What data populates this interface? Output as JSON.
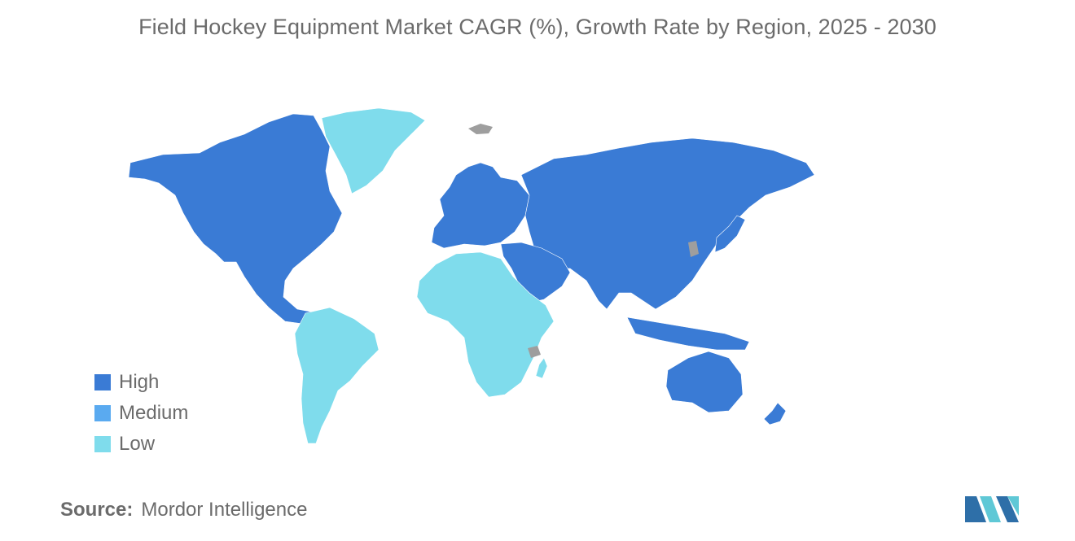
{
  "title": "Field Hockey Equipment Market CAGR (%), Growth Rate by Region, 2025 - 2030",
  "legend": [
    {
      "label": "High",
      "color": "#3a7bd5"
    },
    {
      "label": "Medium",
      "color": "#5aaaf0"
    },
    {
      "label": "Low",
      "color": "#7fdcec"
    }
  ],
  "regions": [
    {
      "name": "North America",
      "level": "High"
    },
    {
      "name": "Europe",
      "level": "High"
    },
    {
      "name": "Asia-Pacific",
      "level": "High"
    },
    {
      "name": "Middle East",
      "level": "High"
    },
    {
      "name": "Greenland",
      "level": "Low"
    },
    {
      "name": "South America",
      "level": "Low"
    },
    {
      "name": "Africa",
      "level": "Low"
    }
  ],
  "colors": {
    "no_data": "#9e9e9e",
    "text": "#6b6b6b",
    "logo_dark": "#2e6fa8",
    "logo_light": "#5fc8d6"
  },
  "source": {
    "label": "Source:",
    "value": "Mordor Intelligence"
  }
}
